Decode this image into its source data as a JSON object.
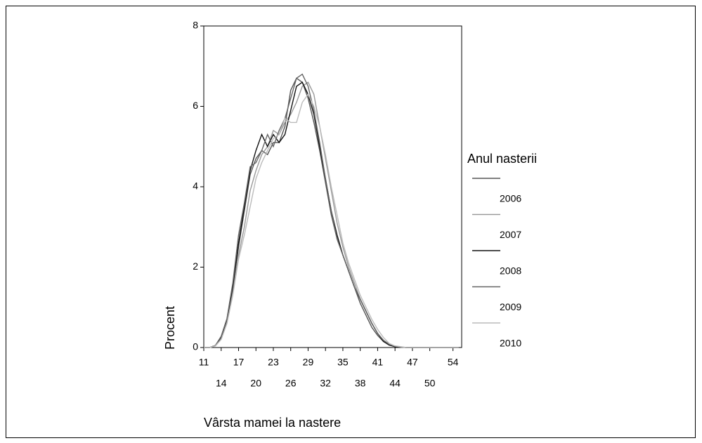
{
  "chart_data": {
    "type": "line",
    "x_label": "Vârsta mamei la nastere",
    "y_label": "Procent",
    "legend_title": "Anul nasterii",
    "x": [
      11,
      12,
      13,
      14,
      15,
      16,
      17,
      18,
      19,
      20,
      21,
      22,
      23,
      24,
      25,
      26,
      27,
      28,
      29,
      30,
      31,
      32,
      33,
      34,
      35,
      36,
      37,
      38,
      39,
      40,
      41,
      42,
      43,
      44,
      45,
      46,
      47,
      48,
      49,
      50,
      51,
      52,
      53,
      54,
      55
    ],
    "xlim": [
      11,
      55.5
    ],
    "xticks": [
      11,
      14,
      17,
      20,
      23,
      26,
      29,
      32,
      35,
      38,
      41,
      44,
      47,
      50,
      54
    ],
    "ylim": [
      0,
      8
    ],
    "yticks": [
      0,
      2,
      4,
      6,
      8
    ],
    "series": [
      {
        "name": "2006",
        "color": "#555555",
        "values": [
          0,
          0,
          0.05,
          0.25,
          0.7,
          1.5,
          2.5,
          3.4,
          4.3,
          4.7,
          4.9,
          4.8,
          5.1,
          5.1,
          5.5,
          6.4,
          6.7,
          6.6,
          6.2,
          5.6,
          4.9,
          4.1,
          3.3,
          2.7,
          2.3,
          1.9,
          1.5,
          1.1,
          0.8,
          0.5,
          0.3,
          0.15,
          0.07,
          0.03,
          0.01,
          0,
          0,
          0,
          0,
          0,
          0,
          0,
          0,
          0,
          0
        ]
      },
      {
        "name": "2007",
        "color": "#999999",
        "values": [
          0,
          0,
          0.04,
          0.22,
          0.65,
          1.4,
          2.3,
          3.0,
          3.9,
          4.4,
          4.8,
          5.0,
          5.4,
          5.3,
          5.6,
          5.8,
          6.1,
          6.5,
          6.6,
          6.3,
          5.5,
          4.7,
          3.9,
          3.1,
          2.5,
          2.0,
          1.6,
          1.2,
          0.9,
          0.6,
          0.35,
          0.18,
          0.08,
          0.03,
          0.01,
          0,
          0,
          0,
          0,
          0,
          0,
          0,
          0,
          0,
          0
        ]
      },
      {
        "name": "2008",
        "color": "#111111",
        "values": [
          0,
          0,
          0.05,
          0.26,
          0.7,
          1.5,
          2.6,
          3.5,
          4.4,
          4.9,
          5.3,
          5.0,
          5.3,
          5.1,
          5.3,
          5.9,
          6.5,
          6.6,
          6.3,
          5.8,
          5.0,
          4.2,
          3.4,
          2.8,
          2.3,
          1.9,
          1.5,
          1.2,
          0.9,
          0.6,
          0.35,
          0.15,
          0.06,
          0.02,
          0.01,
          0,
          0,
          0,
          0,
          0,
          0,
          0,
          0,
          0,
          0
        ]
      },
      {
        "name": "2009",
        "color": "#666666",
        "values": [
          0,
          0,
          0.05,
          0.28,
          0.72,
          1.6,
          2.8,
          3.6,
          4.5,
          4.6,
          4.9,
          5.3,
          5.0,
          5.4,
          5.7,
          6.2,
          6.7,
          6.8,
          6.5,
          5.9,
          5.1,
          4.2,
          3.4,
          2.7,
          2.3,
          1.9,
          1.5,
          1.2,
          0.9,
          0.6,
          0.35,
          0.18,
          0.08,
          0.03,
          0.01,
          0,
          0,
          0,
          0,
          0,
          0,
          0,
          0,
          0,
          0
        ]
      },
      {
        "name": "2010",
        "color": "#bbbbbb",
        "values": [
          0,
          0,
          0.04,
          0.2,
          0.6,
          1.3,
          2.2,
          2.8,
          3.5,
          4.2,
          4.6,
          4.9,
          5.2,
          5.3,
          5.7,
          5.6,
          5.6,
          6.1,
          6.3,
          6.0,
          5.5,
          4.8,
          4.0,
          3.3,
          2.6,
          2.1,
          1.7,
          1.3,
          1.0,
          0.7,
          0.45,
          0.25,
          0.1,
          0.04,
          0.02,
          0,
          0,
          0,
          0,
          0,
          0,
          0,
          0,
          0,
          0
        ]
      }
    ]
  }
}
